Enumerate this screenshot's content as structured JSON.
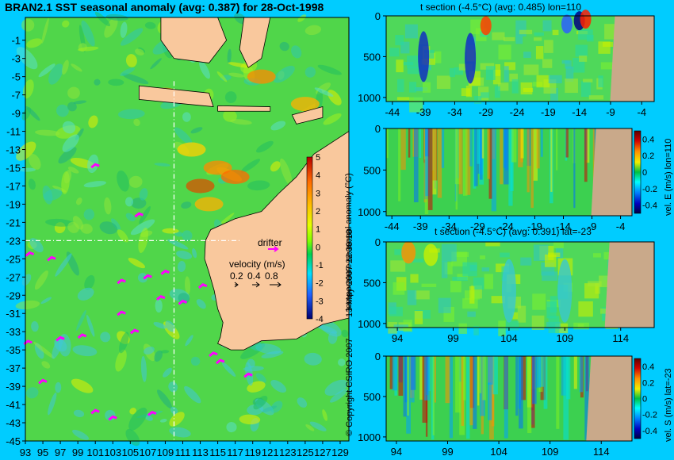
{
  "chart_data": [
    {
      "type": "heatmap",
      "title": "BRAN2.1 SST seasonal anomaly (avg: 0.387) for 28-Oct-1998",
      "x_ticks": [
        "93",
        "95",
        "97",
        "99",
        "101",
        "103",
        "105",
        "107",
        "109",
        "111",
        "113",
        "115",
        "117",
        "119",
        "121",
        "123",
        "125",
        "127",
        "129"
      ],
      "y_ticks": [
        "-1",
        "-3",
        "-5",
        "-7",
        "-9",
        "-11",
        "-13",
        "-15",
        "-17",
        "-19",
        "-21",
        "-23",
        "-25",
        "-27",
        "-29",
        "-31",
        "-33",
        "-35",
        "-37",
        "-39",
        "-41",
        "-43",
        "-45"
      ],
      "xlim": [
        93,
        130
      ],
      "ylim": [
        -45,
        1.5
      ],
      "colorbar": {
        "label": "temperature seasonal anomaly (°C)",
        "ticks": [
          "5",
          "4",
          "3",
          "2",
          "1",
          "0",
          "-1",
          "-2",
          "-3",
          "-4"
        ],
        "range": [
          -4,
          5
        ]
      },
      "legend": {
        "drifter": "drifter",
        "velocity_label": "velocity (m/s)",
        "velocity_values": [
          "0.2",
          "0.4",
          "0.8"
        ]
      },
      "section_lines": {
        "lat": -23,
        "lon": 110
      }
    },
    {
      "type": "heatmap",
      "title": "t section (-4.5°C) (avg: 0.485) lon=110",
      "x_ticks": [
        "-44",
        "-39",
        "-34",
        "-29",
        "-24",
        "-19",
        "-14",
        "-9",
        "-4"
      ],
      "y_ticks": [
        "0",
        "500",
        "1000"
      ],
      "xlim": [
        -45,
        -2
      ],
      "ylim": [
        1050,
        0
      ]
    },
    {
      "type": "heatmap",
      "title": "",
      "x_ticks": [
        "-44",
        "-39",
        "-34",
        "-29",
        "-24",
        "-19",
        "-14",
        "-9",
        "-4"
      ],
      "y_ticks": [
        "0",
        "500",
        "1000"
      ],
      "xlim": [
        -45,
        -2
      ],
      "ylim": [
        1050,
        0
      ],
      "colorbar": {
        "label": "vel. E (m/s) lon=110",
        "ticks": [
          "0.4",
          "0.2",
          "0",
          "-0.2",
          "-0.4"
        ],
        "range": [
          -0.5,
          0.5
        ]
      }
    },
    {
      "type": "heatmap",
      "title": "t section (-4.5°C) (avg: 0.391) lat=-23",
      "x_ticks": [
        "94",
        "99",
        "104",
        "109",
        "114"
      ],
      "y_ticks": [
        "0",
        "500",
        "1000"
      ],
      "xlim": [
        93,
        117
      ],
      "ylim": [
        1050,
        0
      ]
    },
    {
      "type": "heatmap",
      "title": "",
      "x_ticks": [
        "94",
        "99",
        "104",
        "109",
        "114"
      ],
      "y_ticks": [
        "0",
        "500",
        "1000"
      ],
      "xlim": [
        93,
        117
      ],
      "ylim": [
        1050,
        0
      ],
      "colorbar": {
        "label": "vel. S (m/s) lat=-23",
        "ticks": [
          "0.4",
          "0.2",
          "0",
          "-0.2",
          "-0.4"
        ],
        "range": [
          -0.5,
          0.5
        ]
      }
    }
  ],
  "texts": {
    "timestamp": "13-May-2007 22:38:18",
    "copyright": "© Copyright CSIRO 2007"
  },
  "colors": {
    "background": "#00ccff",
    "land": "#f9c89d",
    "section_land": "#c9a98a",
    "drifter": "#ff00ff"
  }
}
